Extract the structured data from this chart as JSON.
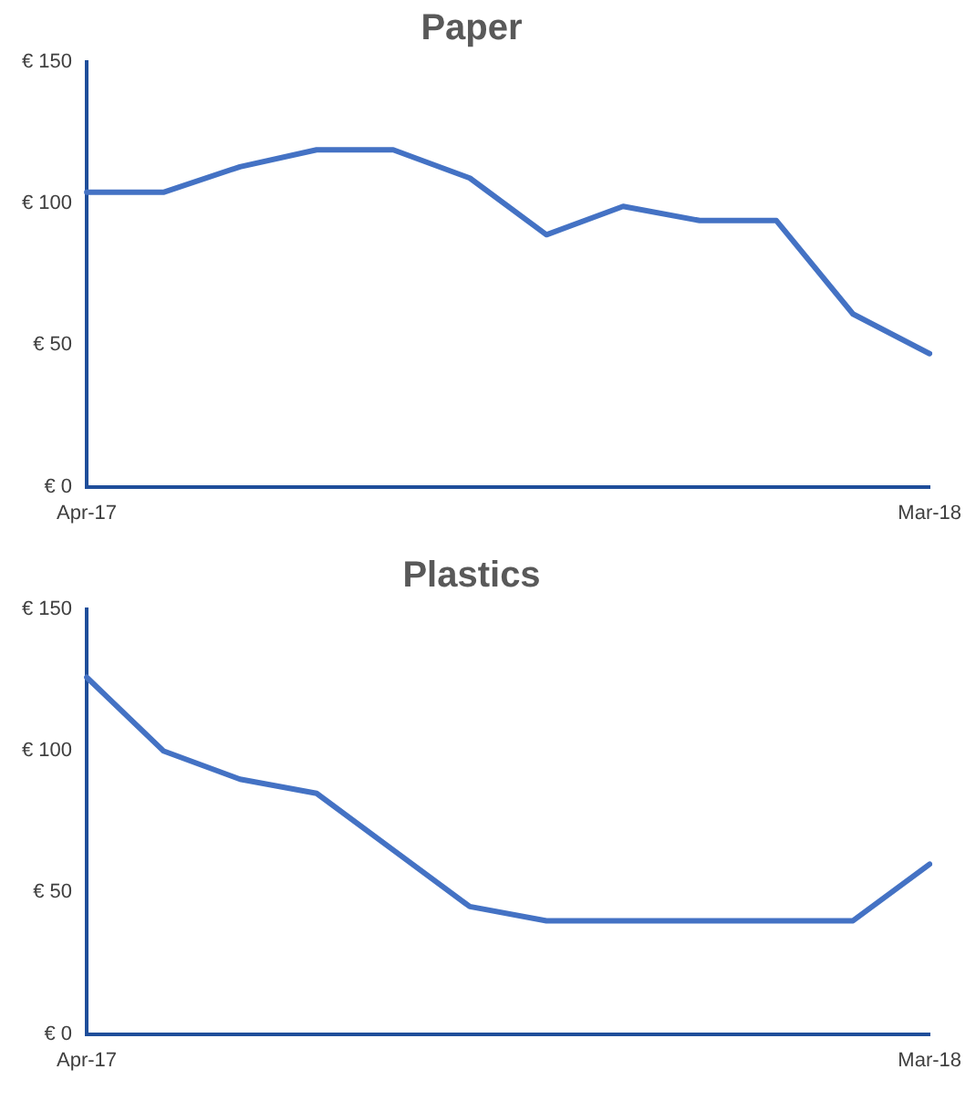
{
  "chart_data": [
    {
      "type": "line",
      "title": "Paper",
      "categories": [
        "Apr-17",
        null,
        null,
        null,
        null,
        null,
        null,
        null,
        null,
        null,
        null,
        "Mar-18"
      ],
      "series": [
        {
          "color": "#4472c4",
          "values": [
            104,
            104,
            113,
            119,
            119,
            109,
            89,
            99,
            94,
            94,
            61,
            47
          ]
        }
      ],
      "ylim": [
        0,
        150
      ],
      "yticks": [
        {
          "value": 0,
          "label": "€ 0"
        },
        {
          "value": 50,
          "label": "€ 50"
        },
        {
          "value": 100,
          "label": "€ 100"
        },
        {
          "value": 150,
          "label": "€ 150"
        }
      ],
      "grid": false,
      "legend": false
    },
    {
      "type": "line",
      "title": "Plastics",
      "categories": [
        "Apr-17",
        null,
        null,
        null,
        null,
        null,
        null,
        null,
        null,
        null,
        null,
        "Mar-18"
      ],
      "series": [
        {
          "color": "#4472c4",
          "values": [
            126,
            100,
            90,
            85,
            65,
            45,
            40,
            40,
            40,
            40,
            40,
            60
          ]
        }
      ],
      "ylim": [
        0,
        150
      ],
      "yticks": [
        {
          "value": 0,
          "label": "€ 0"
        },
        {
          "value": 50,
          "label": "€ 50"
        },
        {
          "value": 100,
          "label": "€ 100"
        },
        {
          "value": 150,
          "label": "€ 150"
        }
      ],
      "grid": false,
      "legend": false
    }
  ]
}
